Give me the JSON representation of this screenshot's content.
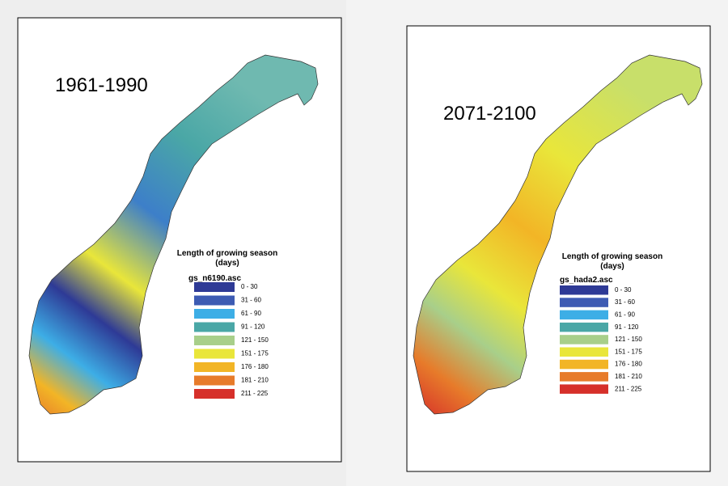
{
  "panels": [
    {
      "title": "1961-1990",
      "legend": {
        "title": "Length of growing season",
        "subtitle": "(days)",
        "file": "gs_n6190.asc",
        "items": [
          {
            "label": "0 - 30",
            "color": "#2e3a96"
          },
          {
            "label": "31 - 60",
            "color": "#3d5bb3"
          },
          {
            "label": "61 - 90",
            "color": "#3daee6"
          },
          {
            "label": "91 - 120",
            "color": "#4aa7a6"
          },
          {
            "label": "121 - 150",
            "color": "#a8cf8a"
          },
          {
            "label": "151 - 175",
            "color": "#e9e63a"
          },
          {
            "label": "176 - 180",
            "color": "#f2b526"
          },
          {
            "label": "181 - 210",
            "color": "#e77b2a"
          },
          {
            "label": "211 - 225",
            "color": "#d6302a"
          }
        ]
      }
    },
    {
      "title": "2071-2100",
      "legend": {
        "title": "Length of growing season",
        "subtitle": "(days)",
        "file": "gs_hada2.asc",
        "items": [
          {
            "label": "0 - 30",
            "color": "#2e3a96"
          },
          {
            "label": "31 - 60",
            "color": "#3d5bb3"
          },
          {
            "label": "61 - 90",
            "color": "#3daee6"
          },
          {
            "label": "91 - 120",
            "color": "#4aa7a6"
          },
          {
            "label": "121 - 150",
            "color": "#a8cf8a"
          },
          {
            "label": "151 - 175",
            "color": "#e9e63a"
          },
          {
            "label": "176 - 180",
            "color": "#f2b526"
          },
          {
            "label": "181 - 210",
            "color": "#e77b2a"
          },
          {
            "label": "211 - 225",
            "color": "#d6302a"
          }
        ]
      }
    }
  ]
}
